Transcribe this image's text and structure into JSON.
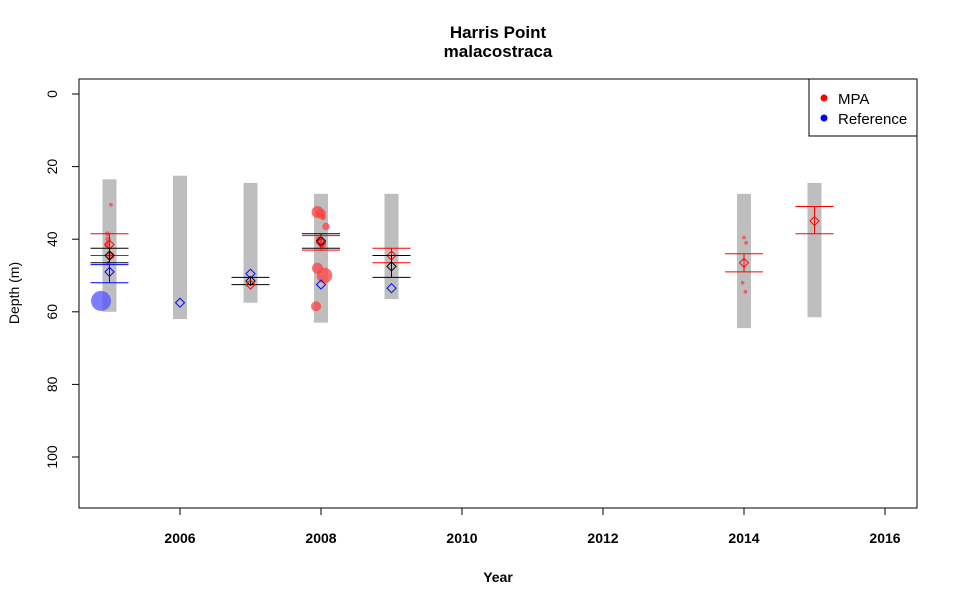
{
  "chart_data": {
    "type": "scatter",
    "title": "Harris Point",
    "subtitle": "malacostraca",
    "xlabel": "Year",
    "ylabel": "Depth (m)",
    "xlim": [
      2004.6,
      2016.4
    ],
    "ylim": [
      0,
      115
    ],
    "y_reversed": true,
    "xticks": [
      "2006",
      "2008",
      "2010",
      "2012",
      "2014",
      "2016"
    ],
    "yticks": [
      "0",
      "20",
      "40",
      "60",
      "80",
      "100"
    ],
    "legend": {
      "position": "top-right",
      "entries": [
        {
          "label": "MPA",
          "color": "#ff0000"
        },
        {
          "label": "Reference",
          "color": "#0000ff"
        }
      ]
    },
    "colors": {
      "mpa": "#ff0000",
      "reference": "#0000ff",
      "overall": "#000000",
      "range": "#bebebe"
    },
    "depth_ranges": [
      {
        "year": 2005,
        "min": 23.5,
        "max": 60
      },
      {
        "year": 2006,
        "min": 22.5,
        "max": 62
      },
      {
        "year": 2007,
        "min": 24.5,
        "max": 57.5
      },
      {
        "year": 2008,
        "min": 27.5,
        "max": 63
      },
      {
        "year": 2009,
        "min": 27.5,
        "max": 56.5
      },
      {
        "year": 2014,
        "min": 27.5,
        "max": 64.5
      },
      {
        "year": 2015,
        "min": 24.5,
        "max": 61.5
      }
    ],
    "means": [
      {
        "year": 2005,
        "group": "MPA",
        "mean": 41.5,
        "lower": 38.5,
        "upper": 44.5
      },
      {
        "year": 2005,
        "group": "overall",
        "mean": 44.5,
        "lower": 42.5,
        "upper": 46.5
      },
      {
        "year": 2005,
        "group": "Reference",
        "mean": 49,
        "lower": 47,
        "upper": 52
      },
      {
        "year": 2006,
        "group": "Reference",
        "mean": 57.5,
        "lower": 57.5,
        "upper": 57.5
      },
      {
        "year": 2007,
        "group": "Reference",
        "mean": 49.5,
        "lower": 49.5,
        "upper": 49.5
      },
      {
        "year": 2007,
        "group": "overall",
        "mean": 51.5,
        "lower": 50.5,
        "upper": 52.5
      },
      {
        "year": 2007,
        "group": "MPA",
        "mean": 52.5,
        "lower": 52.5,
        "upper": 53
      },
      {
        "year": 2008,
        "group": "overall",
        "mean": 40.5,
        "lower": 38.5,
        "upper": 42.5
      },
      {
        "year": 2008,
        "group": "MPA",
        "mean": 41,
        "lower": 39,
        "upper": 43
      },
      {
        "year": 2008,
        "group": "Reference",
        "mean": 52.5,
        "lower": 52.5,
        "upper": 52.5
      },
      {
        "year": 2009,
        "group": "MPA",
        "mean": 44.5,
        "lower": 42.5,
        "upper": 46.5
      },
      {
        "year": 2009,
        "group": "overall",
        "mean": 47.5,
        "lower": 44.5,
        "upper": 50.5
      },
      {
        "year": 2009,
        "group": "Reference",
        "mean": 53.5,
        "lower": 53.5,
        "upper": 53.5
      },
      {
        "year": 2014,
        "group": "MPA",
        "mean": 46.5,
        "lower": 44,
        "upper": 49
      },
      {
        "year": 2015,
        "group": "MPA",
        "mean": 35,
        "lower": 31,
        "upper": 38.5
      }
    ],
    "observations": [
      {
        "x": 2005.02,
        "y": 30.5,
        "group": "MPA",
        "size": 0.1
      },
      {
        "x": 2004.97,
        "y": 38.5,
        "group": "MPA",
        "size": 0.15
      },
      {
        "x": 2004.98,
        "y": 40,
        "group": "MPA",
        "size": 0.2
      },
      {
        "x": 2004.97,
        "y": 41.5,
        "group": "MPA",
        "size": 0.25
      },
      {
        "x": 2005.02,
        "y": 44.5,
        "group": "MPA",
        "size": 0.3
      },
      {
        "x": 2004.98,
        "y": 46.5,
        "group": "Reference",
        "size": 0.1
      },
      {
        "x": 2004.88,
        "y": 57,
        "group": "Reference",
        "size": 1.0
      },
      {
        "x": 2007.95,
        "y": 32.5,
        "group": "MPA",
        "size": 0.55
      },
      {
        "x": 2008.0,
        "y": 33,
        "group": "MPA",
        "size": 0.45
      },
      {
        "x": 2008.03,
        "y": 34,
        "group": "MPA",
        "size": 0.2
      },
      {
        "x": 2008.07,
        "y": 36.5,
        "group": "MPA",
        "size": 0.3
      },
      {
        "x": 2007.97,
        "y": 40,
        "group": "MPA",
        "size": 0.25
      },
      {
        "x": 2008.02,
        "y": 41.5,
        "group": "MPA",
        "size": 0.3
      },
      {
        "x": 2007.95,
        "y": 48,
        "group": "MPA",
        "size": 0.5
      },
      {
        "x": 2008.05,
        "y": 50,
        "group": "MPA",
        "size": 0.75
      },
      {
        "x": 2007.93,
        "y": 58.5,
        "group": "MPA",
        "size": 0.45
      },
      {
        "x": 2014.0,
        "y": 39.5,
        "group": "MPA",
        "size": 0.1
      },
      {
        "x": 2014.03,
        "y": 41,
        "group": "MPA",
        "size": 0.1
      },
      {
        "x": 2013.98,
        "y": 52,
        "group": "MPA",
        "size": 0.1
      },
      {
        "x": 2014.02,
        "y": 54.5,
        "group": "MPA",
        "size": 0.1
      }
    ]
  }
}
